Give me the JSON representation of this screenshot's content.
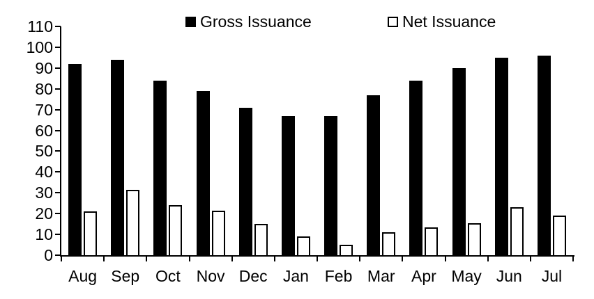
{
  "chart_data": {
    "type": "bar",
    "title": "",
    "xlabel": "",
    "ylabel": "",
    "categories": [
      "Aug",
      "Sep",
      "Oct",
      "Nov",
      "Dec",
      "Jan",
      "Feb",
      "Mar",
      "Apr",
      "May",
      "Jun",
      "Jul"
    ],
    "series": [
      {
        "name": "Gross Issuance",
        "style": "filled",
        "fill_color": "#000000",
        "border_color": "#000000",
        "values": [
          92,
          94,
          84,
          79,
          71,
          67,
          67,
          77,
          84,
          90,
          95,
          96
        ]
      },
      {
        "name": "Net Issuance",
        "style": "hollow",
        "fill_color": "#ffffff",
        "border_color": "#000000",
        "values": [
          21,
          31.5,
          24,
          21.5,
          15,
          9,
          5,
          11,
          13.5,
          15.5,
          23,
          19
        ]
      }
    ],
    "ylim": [
      0,
      110
    ],
    "yticks": [
      0,
      10,
      20,
      30,
      40,
      50,
      60,
      70,
      80,
      90,
      100,
      110
    ],
    "grid": false,
    "legend_position": "top",
    "background_color": "#ffffff"
  }
}
